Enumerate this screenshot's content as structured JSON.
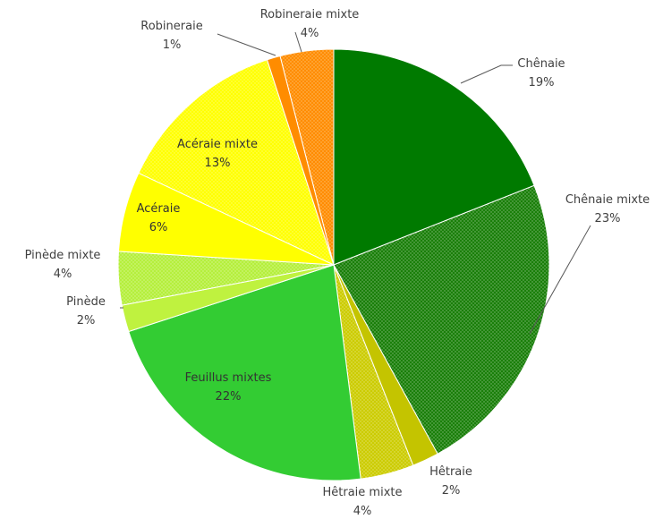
{
  "chart_data": {
    "type": "pie",
    "title": "",
    "start_angle_deg": 0,
    "direction": "clockwise",
    "slices": [
      {
        "name": "Chênaie",
        "value": 19,
        "label": "19%",
        "color": "#007a00",
        "pattern": "none"
      },
      {
        "name": "Chênaie mixte",
        "value": 23,
        "label": "23%",
        "color": "#1a7f0a",
        "pattern": "dots"
      },
      {
        "name": "Hêtraie",
        "value": 2,
        "label": "2%",
        "color": "#c4c400",
        "pattern": "none"
      },
      {
        "name": "Hêtraie mixte",
        "value": 4,
        "label": "4%",
        "color": "#cccc00",
        "pattern": "dots"
      },
      {
        "name": "Feuillus mixtes",
        "value": 22,
        "label": "22%",
        "color": "#33cc33",
        "pattern": "none"
      },
      {
        "name": "Pinède",
        "value": 2,
        "label": "2%",
        "color": "#bff23f",
        "pattern": "none"
      },
      {
        "name": "Pinède mixte",
        "value": 4,
        "label": "4%",
        "color": "#b5ef3c",
        "pattern": "dots"
      },
      {
        "name": "Acéraie",
        "value": 6,
        "label": "6%",
        "color": "#ffff00",
        "pattern": "none"
      },
      {
        "name": "Acéraie mixte",
        "value": 13,
        "label": "13%",
        "color": "#ffff00",
        "pattern": "dots"
      },
      {
        "name": "Robineraie",
        "value": 1,
        "label": "1%",
        "color": "#ff8c00",
        "pattern": "none"
      },
      {
        "name": "Robineraie mixte",
        "value": 4,
        "label": "4%",
        "color": "#ff8c00",
        "pattern": "dots"
      }
    ]
  }
}
